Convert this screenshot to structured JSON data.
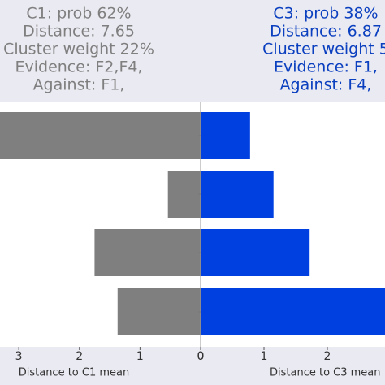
{
  "chart_data": [
    {
      "type": "hbar",
      "direction": "left",
      "color": "#7f7f7f",
      "text_color": "#7f7f7f",
      "annotations": [
        "C1: prob 62%",
        "Distance: 7.65",
        "Cluster weight 22%",
        "Evidence: F2,F4,",
        "Against: F1,"
      ],
      "xlabel": "Distance to C1 mean",
      "values": [
        3.31,
        0.54,
        1.75,
        1.37
      ],
      "xlim": [
        0,
        3.31
      ],
      "xticks": [
        0,
        1,
        2,
        3
      ]
    },
    {
      "type": "hbar",
      "direction": "right",
      "color": "#0040e0",
      "text_color": "#0a3fbf",
      "annotations": [
        "C3: prob 38%",
        "Distance: 6.87",
        "Cluster weight 5",
        "Evidence: F1,",
        "Against: F4,"
      ],
      "xlabel": "Distance to C3 mean",
      "values": [
        0.78,
        1.15,
        1.72,
        3.0
      ],
      "xlim": [
        0,
        2.91
      ],
      "xticks": [
        0,
        1,
        2
      ]
    }
  ]
}
